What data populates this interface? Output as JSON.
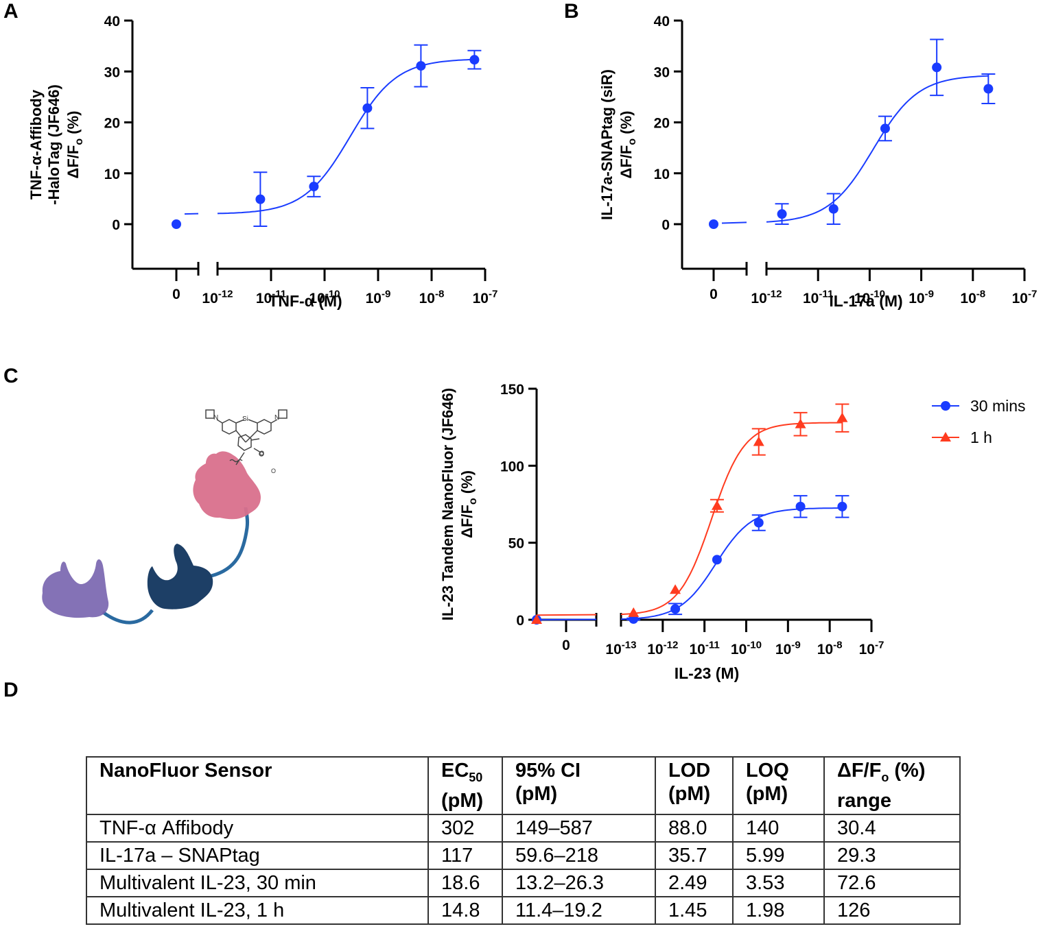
{
  "panels": {
    "a": "A",
    "b": "B",
    "c": "C",
    "d": "D"
  },
  "chart_data": [
    {
      "id": "A",
      "type": "scatter",
      "fit": "sigmoidal dose-response",
      "title": "",
      "ylabel_lines": [
        "TNF-α-Affibody",
        "-HaloTag (JF646)",
        "ΔF/Fo (%)"
      ],
      "xlabel": "TNF-α (M)",
      "ylim": [
        -5,
        40
      ],
      "yticks": [
        0,
        10,
        20,
        30,
        40
      ],
      "xlog_range": [
        -12,
        -7
      ],
      "xticks": [
        "0",
        "10^-12",
        "10^-11",
        "10^-10",
        "10^-9",
        "10^-8",
        "10^-7"
      ],
      "series": [
        {
          "name": "TNF-α",
          "color": "#1a3cff",
          "marker": "circle",
          "zero_point": {
            "y": 0
          },
          "x_log": [
            -11.2,
            -10.2,
            -9.2,
            -8.2,
            -7.2
          ],
          "y": [
            4.9,
            7.4,
            22.8,
            31.1,
            32.3
          ],
          "err": [
            5.3,
            2.0,
            4.0,
            4.1,
            1.8
          ],
          "fit": {
            "bottom": 2.0,
            "top": 32.5,
            "logEC50": -9.52,
            "hill": 1.0
          }
        }
      ]
    },
    {
      "id": "B",
      "type": "scatter",
      "fit": "sigmoidal dose-response",
      "ylabel_lines": [
        "IL-17a-SNAPtag (siR)",
        "ΔF/Fo (%)"
      ],
      "xlabel": "IL-17a (M)",
      "ylim": [
        -5,
        40
      ],
      "yticks": [
        0,
        10,
        20,
        30,
        40
      ],
      "xlog_range": [
        -12,
        -7
      ],
      "xticks": [
        "0",
        "10^-12",
        "10^-11",
        "10^-10",
        "10^-9",
        "10^-8",
        "10^-7"
      ],
      "series": [
        {
          "name": "IL-17a",
          "color": "#1a3cff",
          "marker": "circle",
          "zero_point": {
            "y": 0
          },
          "x_log": [
            -11.7,
            -10.7,
            -9.7,
            -8.7,
            -7.7
          ],
          "y": [
            2.0,
            3.0,
            18.8,
            30.8,
            26.6
          ],
          "err": [
            2.0,
            3.0,
            2.4,
            5.5,
            2.9
          ],
          "fit": {
            "bottom": 0.2,
            "top": 29.3,
            "logEC50": -9.93,
            "hill": 1.0
          }
        }
      ]
    },
    {
      "id": "C",
      "type": "scatter",
      "fit": "sigmoidal dose-response",
      "ylabel_lines": [
        "IL-23 Tandem NanoFluor (JF646)",
        "ΔF/Fo (%)"
      ],
      "xlabel": "IL-23 (M)",
      "ylim": [
        0,
        150
      ],
      "yticks": [
        0,
        50,
        100,
        150
      ],
      "xlog_range": [
        -13,
        -7
      ],
      "xticks": [
        "0",
        "10^-13",
        "10^-12",
        "10^-11",
        "10^-10",
        "10^-9",
        "10^-8",
        "10^-7"
      ],
      "legend": "top-right",
      "series": [
        {
          "name": "30 mins",
          "color": "#1a3cff",
          "marker": "circle",
          "zero_point": {
            "y": 0
          },
          "x_log": [
            -12.7,
            -11.7,
            -10.7,
            -9.7,
            -8.7,
            -7.7
          ],
          "y": [
            0.5,
            7,
            39,
            63,
            73.5,
            73.5
          ],
          "err": [
            0.5,
            3.5,
            0,
            5,
            7,
            7
          ],
          "fit": {
            "bottom": 0,
            "top": 72.6,
            "logEC50": -10.73,
            "hill": 1.0
          }
        },
        {
          "name": "1 h",
          "color": "#ff3b1f",
          "marker": "triangle",
          "zero_point": {
            "y": 0
          },
          "x_log": [
            -12.7,
            -11.7,
            -10.7,
            -9.7,
            -8.7,
            -7.7
          ],
          "y": [
            4.5,
            19.5,
            74,
            115.5,
            127,
            131
          ],
          "err": [
            0,
            0,
            4,
            8.5,
            7.5,
            9
          ],
          "fit": {
            "bottom": 3.0,
            "top": 128,
            "logEC50": -10.83,
            "hill": 1.1
          }
        }
      ]
    }
  ],
  "diagram": {
    "dye_labels": [
      "N",
      "Si",
      "N",
      "O",
      "O"
    ],
    "colors": {
      "pink": "#d9708c",
      "navy": "#1d3f66",
      "purple": "#7a66b0",
      "linker": "#2a6aa0"
    }
  },
  "table": {
    "headers": [
      {
        "main": "NanoFluor Sensor",
        "sub": "",
        "line2": ""
      },
      {
        "main": "EC",
        "sub": "50",
        "line2": "(pM)"
      },
      {
        "main": "95% CI",
        "sub": "",
        "line2": "(pM)"
      },
      {
        "main": "LOD",
        "sub": "",
        "line2": "(pM)"
      },
      {
        "main": "LOQ",
        "sub": "",
        "line2": "(pM)"
      },
      {
        "main": "ΔF/F",
        "sub": "o",
        "line2": "range",
        "suffix": " (%)"
      }
    ],
    "rows": [
      [
        "TNF-α Affibody",
        "302",
        "149–587",
        "88.0",
        "140",
        "30.4"
      ],
      [
        "IL-17a – SNAPtag",
        "117",
        "59.6–218",
        "35.7",
        "5.99",
        "29.3"
      ],
      [
        "Multivalent IL-23, 30 min",
        "18.6",
        "13.2–26.3",
        "2.49",
        "3.53",
        "72.6"
      ],
      [
        "Multivalent IL-23, 1 h",
        "14.8",
        "11.4–19.2",
        "1.45",
        "1.98",
        "126"
      ]
    ]
  }
}
